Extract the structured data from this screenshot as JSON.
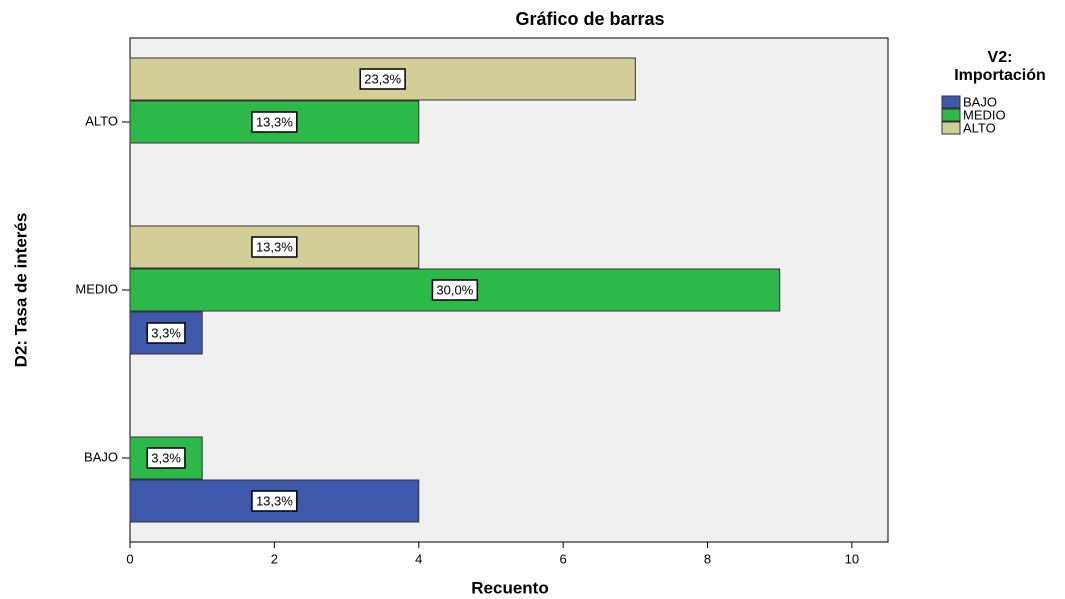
{
  "chart_data": {
    "type": "hbar",
    "title": "Gráfico de barras",
    "x_label": "Recuento",
    "y_label": "D2: Tasa de interés",
    "legend_title": [
      "V2:",
      "Importación"
    ],
    "categories": [
      "BAJO",
      "MEDIO",
      "ALTO"
    ],
    "series": [
      {
        "name": "BAJO",
        "color": "#3e58ac",
        "values": [
          4,
          1,
          null
        ],
        "value_labels": [
          "13,3%",
          "3,3%",
          null
        ]
      },
      {
        "name": "MEDIO",
        "color": "#2db84a",
        "values": [
          1,
          9,
          4
        ],
        "value_labels": [
          "3,3%",
          "30,0%",
          "13,3%"
        ]
      },
      {
        "name": "ALTO",
        "color": "#d3ce97",
        "values": [
          null,
          4,
          7
        ],
        "value_labels": [
          null,
          "13,3%",
          "23,3%"
        ]
      }
    ],
    "xlim": [
      0,
      10.5
    ],
    "xticks": [
      0,
      2,
      4,
      6,
      8,
      10
    ],
    "legend": "right"
  }
}
